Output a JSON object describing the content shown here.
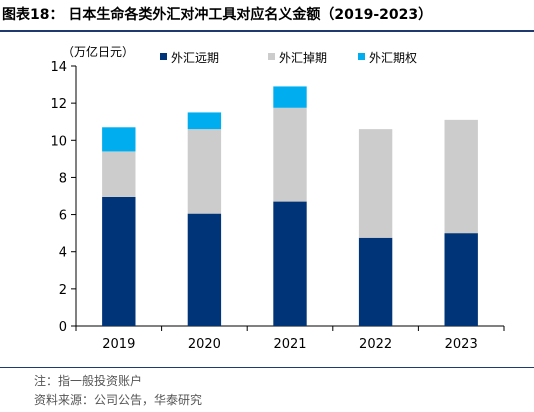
{
  "title": "图表18： 日本生命各类外汇对冲工具对应名义金额（2019-2023）",
  "notes": [
    "注：指一般投资账户",
    "资料来源：公司公告，华泰研究"
  ],
  "chart_data": {
    "type": "bar",
    "stacked": true,
    "unit_label": "（万亿日元）",
    "categories": [
      "2019",
      "2020",
      "2021",
      "2022",
      "2023"
    ],
    "series": [
      {
        "name": "外汇远期",
        "color": "#003478",
        "values": [
          6.95,
          6.05,
          6.7,
          4.75,
          5.0
        ]
      },
      {
        "name": "外汇掉期",
        "color": "#cccccc",
        "values": [
          2.45,
          4.55,
          5.05,
          5.85,
          6.1
        ]
      },
      {
        "name": "外汇期权",
        "color": "#00aeef",
        "values": [
          1.3,
          0.9,
          1.15,
          0,
          0
        ]
      }
    ],
    "ylim": [
      0,
      14
    ],
    "yticks": [
      0,
      2,
      4,
      6,
      8,
      10,
      12,
      14
    ],
    "grid": false,
    "legend": "top"
  }
}
